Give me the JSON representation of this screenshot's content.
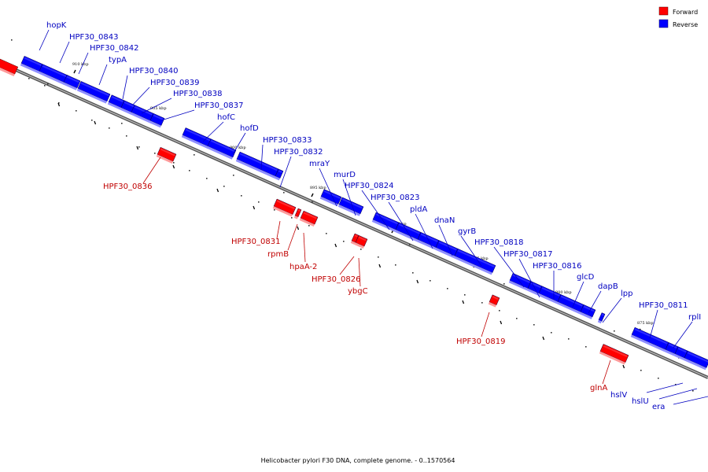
{
  "legend": {
    "items": [
      {
        "label": "Forward",
        "color": "#ff0000"
      },
      {
        "label": "Reverse",
        "color": "#0000ff"
      }
    ]
  },
  "caption": "Helicobacter pylori F30 DNA, complete genome. - 0..1570564",
  "strand_colors": {
    "forward": "#ff0000",
    "reverse": "#0000ff",
    "forward_label": "#c00000",
    "reverse_label": "#0000c0"
  },
  "tick_labels": [
    "910 kbp",
    "905 kbp",
    "900 kbp",
    "895 kbp",
    "890 kbp",
    "885 kbp",
    "880 kbp",
    "875 kbp"
  ],
  "genes": [
    {
      "name": "hopK",
      "strand": "reverse"
    },
    {
      "name": "HPF30_0843",
      "strand": "reverse"
    },
    {
      "name": "HPF30_0842",
      "strand": "reverse"
    },
    {
      "name": "typA",
      "strand": "reverse"
    },
    {
      "name": "HPF30_0840",
      "strand": "reverse"
    },
    {
      "name": "HPF30_0839",
      "strand": "reverse"
    },
    {
      "name": "HPF30_0838",
      "strand": "reverse"
    },
    {
      "name": "HPF30_0837",
      "strand": "reverse"
    },
    {
      "name": "hofC",
      "strand": "reverse"
    },
    {
      "name": "hofD",
      "strand": "reverse"
    },
    {
      "name": "HPF30_0833",
      "strand": "reverse"
    },
    {
      "name": "HPF30_0832",
      "strand": "reverse"
    },
    {
      "name": "mraY",
      "strand": "reverse"
    },
    {
      "name": "murD",
      "strand": "reverse"
    },
    {
      "name": "HPF30_0824",
      "strand": "reverse"
    },
    {
      "name": "HPF30_0823",
      "strand": "reverse"
    },
    {
      "name": "pldA",
      "strand": "reverse"
    },
    {
      "name": "dnaN",
      "strand": "reverse"
    },
    {
      "name": "gyrB",
      "strand": "reverse"
    },
    {
      "name": "HPF30_0818",
      "strand": "reverse"
    },
    {
      "name": "HPF30_0817",
      "strand": "reverse"
    },
    {
      "name": "HPF30_0816",
      "strand": "reverse"
    },
    {
      "name": "glcD",
      "strand": "reverse"
    },
    {
      "name": "dapB",
      "strand": "reverse"
    },
    {
      "name": "lpp",
      "strand": "reverse"
    },
    {
      "name": "HPF30_0811",
      "strand": "reverse"
    },
    {
      "name": "rplI",
      "strand": "reverse"
    },
    {
      "name": "hslV",
      "strand": "reverse"
    },
    {
      "name": "hslU",
      "strand": "reverse"
    },
    {
      "name": "era",
      "strand": "reverse"
    },
    {
      "name": "HPF30_0836",
      "strand": "forward"
    },
    {
      "name": "HPF30_0831",
      "strand": "forward"
    },
    {
      "name": "rpmB",
      "strand": "forward"
    },
    {
      "name": "hpaA-2",
      "strand": "forward"
    },
    {
      "name": "HPF30_0826",
      "strand": "forward"
    },
    {
      "name": "ybgC",
      "strand": "forward"
    },
    {
      "name": "HPF30_0819",
      "strand": "forward"
    },
    {
      "name": "glnA",
      "strand": "forward"
    }
  ]
}
